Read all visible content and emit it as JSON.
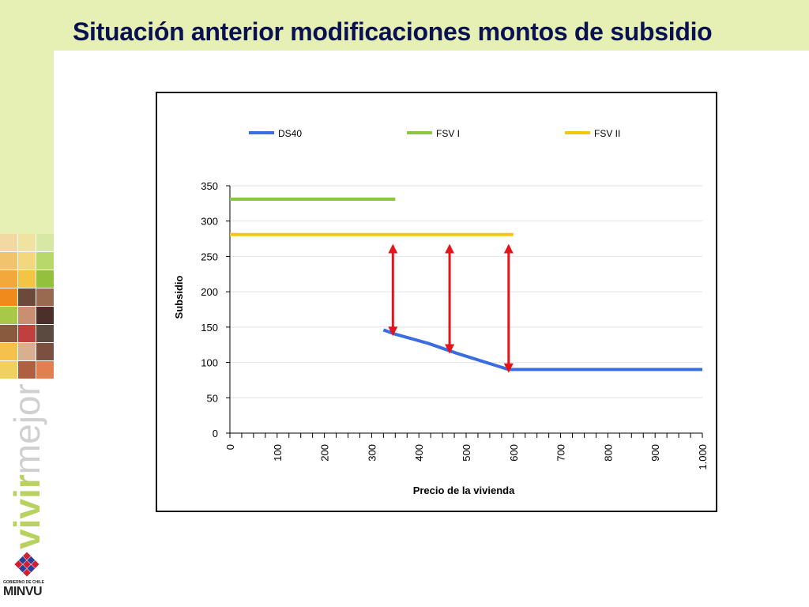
{
  "slide": {
    "title": "Situación anterior modificaciones montos de subsidio",
    "colors": {
      "band": "#e6f0b4",
      "title": "#0a1150"
    }
  },
  "branding": {
    "tagline_word1": "vivir",
    "tagline_word2": "mejor",
    "logo_caption": "GOBIERNO DE CHILE",
    "logo_name": "MINVU",
    "logo_icon": "minvu-house-logo-icon"
  },
  "chart_data": {
    "type": "line",
    "xlabel": "Precio de la vivienda",
    "ylabel": "Subsidio",
    "xlim": [
      0,
      1000
    ],
    "ylim": [
      0,
      350
    ],
    "xticks": [
      "0",
      "100",
      "200",
      "300",
      "400",
      "500",
      "600",
      "700",
      "800",
      "900",
      "1.000"
    ],
    "yticks": [
      "0",
      "50",
      "100",
      "150",
      "200",
      "250",
      "300",
      "350"
    ],
    "x_minor_step": 25,
    "grid": true,
    "legend_position": "top",
    "series": [
      {
        "name": "DS40",
        "color": "#3b6de0",
        "points": [
          [
            325,
            146
          ],
          [
            350,
            140
          ],
          [
            420,
            127
          ],
          [
            480,
            113
          ],
          [
            590,
            90
          ],
          [
            1000,
            90
          ]
        ]
      },
      {
        "name": "FSV  I",
        "color": "#8cc63f",
        "points": [
          [
            0,
            331
          ],
          [
            350,
            331
          ]
        ]
      },
      {
        "name": "FSV  II",
        "color": "#f2c80f",
        "points": [
          [
            0,
            281
          ],
          [
            600,
            281
          ]
        ]
      }
    ],
    "annotations": [
      {
        "type": "double-arrow",
        "color": "#e3151a",
        "x": 345,
        "y_from": 140,
        "y_to": 265
      },
      {
        "type": "double-arrow",
        "color": "#e3151a",
        "x": 465,
        "y_from": 115,
        "y_to": 265
      },
      {
        "type": "double-arrow",
        "color": "#e3151a",
        "x": 590,
        "y_from": 88,
        "y_to": 265
      }
    ]
  }
}
